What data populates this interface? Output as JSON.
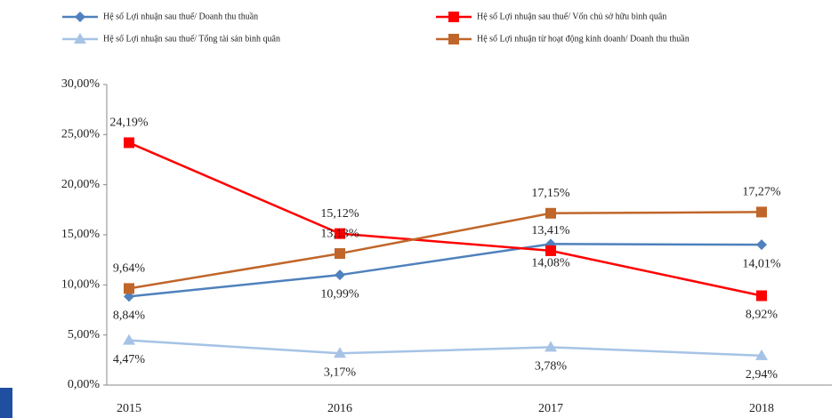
{
  "chart_data": {
    "type": "line",
    "categories": [
      "2015",
      "2016",
      "2017",
      "2018"
    ],
    "series": [
      {
        "name": "Hệ số Lợi nhuận sau thuế/ Doanh thu thuần",
        "color": "#4f81bd",
        "marker": "diamond",
        "values": [
          8.84,
          10.99,
          14.08,
          14.01
        ],
        "value_labels": [
          "8,84%",
          "10,99%",
          "14,08%",
          "14,01%"
        ]
      },
      {
        "name": "Hệ số Lợi nhuận sau thuế/ Vốn chủ sở hữu bình quân",
        "color": "#ff0000",
        "marker": "square",
        "values": [
          24.19,
          15.12,
          13.41,
          8.92
        ],
        "value_labels": [
          "24,19%",
          "15,12%",
          "13,41%",
          "8,92%"
        ]
      },
      {
        "name": "Hệ số Lợi nhuận sau thuế/ Tổng tài sản bình quân",
        "color": "#a6c3e6",
        "marker": "triangle",
        "values": [
          4.47,
          3.17,
          3.78,
          2.94
        ],
        "value_labels": [
          "4,47%",
          "3,17%",
          "3,78%",
          "2,94%"
        ]
      },
      {
        "name": "Hệ số Lợi nhuận từ hoạt động kinh doanh/ Doanh thu thuần",
        "color": "#c0662a",
        "marker": "square",
        "values": [
          9.64,
          13.13,
          17.15,
          17.27
        ],
        "value_labels": [
          "9,64%",
          "13,13%",
          "17,15%",
          "17,27%"
        ]
      }
    ],
    "ylim": [
      0,
      30
    ],
    "yticks": [
      {
        "value": 0,
        "label": "0,00%"
      },
      {
        "value": 5,
        "label": "5,00%"
      },
      {
        "value": 10,
        "label": "10,00%"
      },
      {
        "value": 15,
        "label": "15,00%"
      },
      {
        "value": 20,
        "label": "20,00%"
      },
      {
        "value": 25,
        "label": "25,00%"
      },
      {
        "value": 30,
        "label": "30,00%"
      }
    ],
    "grid": false,
    "legend": "top"
  }
}
